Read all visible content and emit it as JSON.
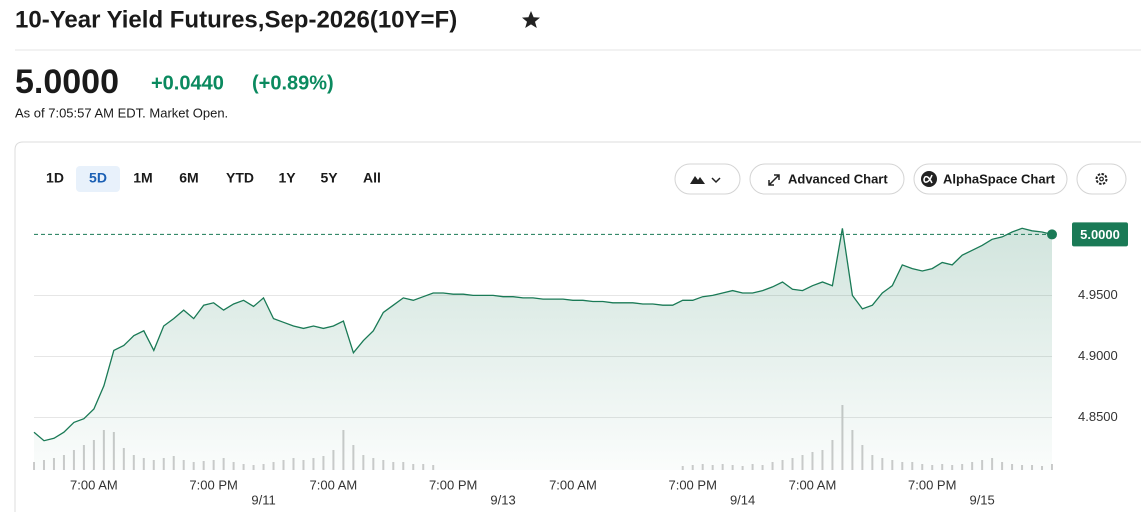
{
  "header": {
    "title": "10-Year Yield Futures,Sep-2026(10Y=F)",
    "price": "5.0000",
    "change": "+0.0440",
    "change_percent": "(+0.89%)",
    "as_of": "As of 7:05:57 AM EDT. Market Open."
  },
  "range_tabs": {
    "items": [
      "1D",
      "5D",
      "1M",
      "6M",
      "YTD",
      "1Y",
      "5Y",
      "All"
    ],
    "selected": 1
  },
  "toolbar": {
    "buttons": [
      "Advanced Chart",
      "AlphaSpace Chart"
    ]
  },
  "chart_data": {
    "type": "area",
    "categories": [
      null,
      null,
      null,
      null,
      null,
      null,
      "7:00 AM",
      null,
      null,
      null,
      null,
      null,
      null,
      null,
      null,
      null,
      null,
      null,
      "7:00 PM",
      null,
      null,
      null,
      null,
      "9/11",
      null,
      null,
      null,
      null,
      null,
      null,
      "7:00 AM",
      null,
      null,
      null,
      null,
      null,
      null,
      null,
      null,
      null,
      null,
      null,
      "7:00 PM",
      null,
      null,
      null,
      null,
      "9/13",
      null,
      null,
      null,
      null,
      null,
      null,
      "7:00 AM",
      null,
      null,
      null,
      null,
      null,
      null,
      null,
      null,
      null,
      null,
      null,
      "7:00 PM",
      null,
      null,
      null,
      null,
      "9/14",
      null,
      null,
      null,
      null,
      null,
      null,
      "7:00 AM",
      null,
      null,
      null,
      null,
      null,
      null,
      null,
      null,
      null,
      null,
      null,
      "7:00 PM",
      null,
      null,
      null,
      null,
      "9/15",
      null,
      null,
      null,
      null,
      null,
      null,
      null
    ],
    "series": [
      {
        "name": "10Y=F",
        "color": "#1a7a56",
        "values": [
          4.838,
          4.831,
          4.833,
          4.838,
          4.846,
          4.849,
          4.857,
          4.876,
          4.905,
          4.909,
          4.917,
          4.921,
          4.905,
          4.925,
          4.931,
          4.938,
          4.931,
          4.942,
          4.944,
          4.938,
          4.943,
          4.946,
          4.941,
          4.948,
          4.931,
          4.928,
          4.925,
          4.923,
          4.925,
          4.923,
          4.925,
          4.929,
          4.903,
          4.913,
          4.921,
          4.936,
          4.942,
          4.948,
          4.946,
          4.949,
          4.952,
          4.952,
          4.951,
          4.951,
          4.95,
          4.95,
          4.95,
          4.949,
          4.949,
          4.948,
          4.948,
          4.947,
          4.947,
          4.947,
          4.946,
          4.946,
          4.945,
          4.945,
          4.944,
          4.944,
          4.944,
          4.943,
          4.943,
          4.942,
          4.942,
          4.946,
          4.946,
          4.949,
          4.95,
          4.952,
          4.954,
          4.952,
          4.952,
          4.954,
          4.957,
          4.961,
          4.955,
          4.954,
          4.958,
          4.961,
          4.958,
          5.005,
          4.95,
          4.939,
          4.942,
          4.952,
          4.958,
          4.975,
          4.972,
          4.97,
          4.972,
          4.977,
          4.975,
          4.983,
          4.987,
          4.991,
          4.996,
          4.998,
          5.002,
          5.005,
          5.003,
          5.002,
          5.0
        ]
      }
    ],
    "volume": {
      "color": "#cccccc",
      "values": [
        8,
        10,
        12,
        15,
        20,
        25,
        30,
        40,
        38,
        22,
        15,
        12,
        10,
        12,
        14,
        10,
        8,
        9,
        10,
        12,
        8,
        6,
        5,
        6,
        8,
        10,
        12,
        10,
        12,
        14,
        20,
        40,
        25,
        15,
        12,
        10,
        8,
        8,
        6,
        6,
        5,
        0,
        0,
        0,
        0,
        0,
        0,
        0,
        0,
        0,
        0,
        0,
        0,
        0,
        0,
        0,
        0,
        0,
        0,
        0,
        0,
        0,
        0,
        0,
        0,
        4,
        5,
        6,
        5,
        6,
        5,
        4,
        6,
        5,
        8,
        10,
        12,
        15,
        18,
        20,
        30,
        65,
        40,
        25,
        15,
        12,
        10,
        8,
        8,
        6,
        5,
        6,
        5,
        6,
        8,
        10,
        12,
        8,
        6,
        5,
        5,
        4,
        6
      ]
    },
    "reference": {
      "value": 5,
      "label": "5.0000"
    },
    "ylim": [
      4.807,
      5.02
    ],
    "yticks": [
      {
        "value": 4.85,
        "label": "4.8500"
      },
      {
        "value": 4.9,
        "label": "4.9000"
      },
      {
        "value": 4.95,
        "label": "4.9500"
      }
    ],
    "grid": true
  }
}
